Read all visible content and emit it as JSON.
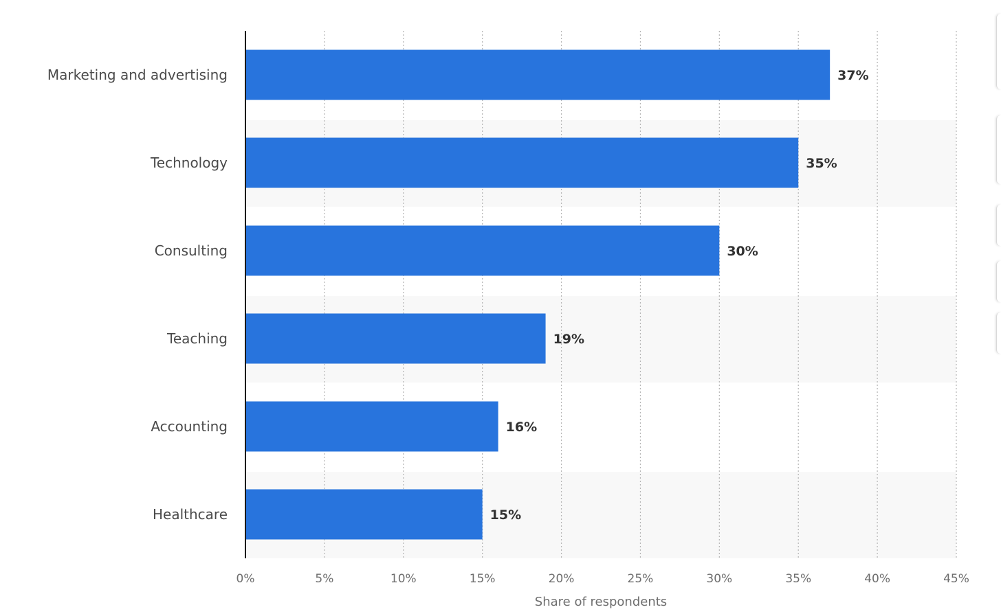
{
  "chart_data": {
    "type": "bar",
    "orientation": "horizontal",
    "categories": [
      "Marketing and advertising",
      "Technology",
      "Consulting",
      "Teaching",
      "Accounting",
      "Healthcare"
    ],
    "values": [
      37,
      35,
      30,
      19,
      16,
      15
    ],
    "value_labels": [
      "37%",
      "35%",
      "30%",
      "19%",
      "16%",
      "15%"
    ],
    "xlabel": "Share of respondents",
    "ylabel": "",
    "xlim": [
      0,
      45
    ],
    "ticks": [
      0,
      5,
      10,
      15,
      20,
      25,
      30,
      35,
      40,
      45
    ],
    "tick_labels": [
      "0%",
      "5%",
      "10%",
      "15%",
      "20%",
      "25%",
      "30%",
      "35%",
      "40%",
      "45%"
    ],
    "grid": "vertical dotted",
    "legend": "none",
    "bar_color": "#2874dd",
    "band_color": "#f8f8f8"
  }
}
